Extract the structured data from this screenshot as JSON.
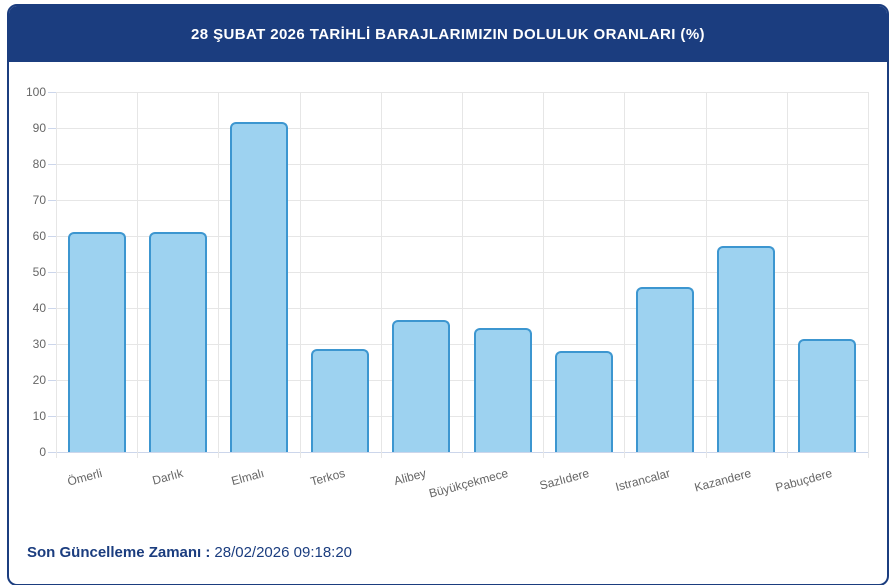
{
  "header": {
    "title": "28 ŞUBAT 2026 TARİHLİ BARAJLARIMIZIN DOLULUK ORANLARI (%)"
  },
  "footer": {
    "label": "Son Güncelleme Zamanı :",
    "value": "28/02/2026 09:18:20"
  },
  "colors": {
    "navy": "#1b3d7f",
    "bar_fill": "#9dd2f0",
    "bar_border": "#3c96d0",
    "grid": "#e6e6e6",
    "axis_line": "#ccd6eb",
    "tick_label": "#666666",
    "title_text": "#ffffff"
  },
  "chart_data": {
    "type": "bar",
    "title": "28 ŞUBAT 2026 TARİHLİ BARAJLARIMIZIN DOLULUK ORANLARI (%)",
    "categories": [
      "Ömerli",
      "Darlık",
      "Elmalı",
      "Terkos",
      "Alibey",
      "Büyükçekmece",
      "Sazlıdere",
      "Istrancalar",
      "Kazandere",
      "Pabuçdere"
    ],
    "values": [
      61.2,
      61.0,
      91.8,
      28.5,
      36.6,
      34.4,
      28.0,
      45.9,
      57.1,
      31.5
    ],
    "xlabel": "",
    "ylabel": "",
    "ylim": [
      0,
      100
    ],
    "ytick_step": 10,
    "grid": true,
    "legend": false,
    "xlabel_rotation_deg": -15
  }
}
